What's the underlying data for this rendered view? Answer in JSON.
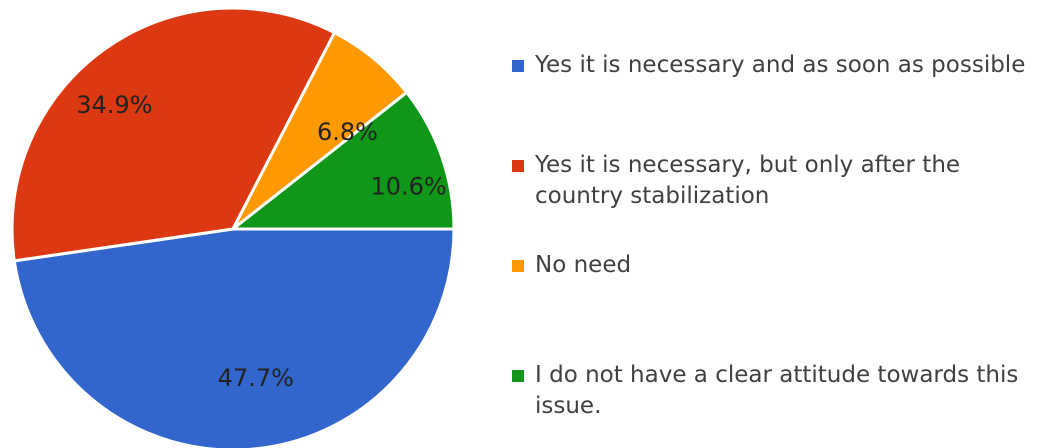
{
  "chart_data": {
    "type": "pie",
    "title": "",
    "legend_position": "right",
    "slices": [
      {
        "label": "Yes it is necessary and as soon as possible",
        "value": 47.7,
        "display": "47.7%",
        "color": "#3366CC"
      },
      {
        "label": "Yes it is necessary, but only after the country stabilization",
        "value": 34.9,
        "display": "34.9%",
        "color": "#DC3912"
      },
      {
        "label": "No need",
        "value": 6.8,
        "display": "6.8%",
        "color": "#FF9900"
      },
      {
        "label": "I do not have a clear attitude towards this issue.",
        "value": 10.6,
        "display": "10.6%",
        "color": "#109618"
      }
    ]
  }
}
